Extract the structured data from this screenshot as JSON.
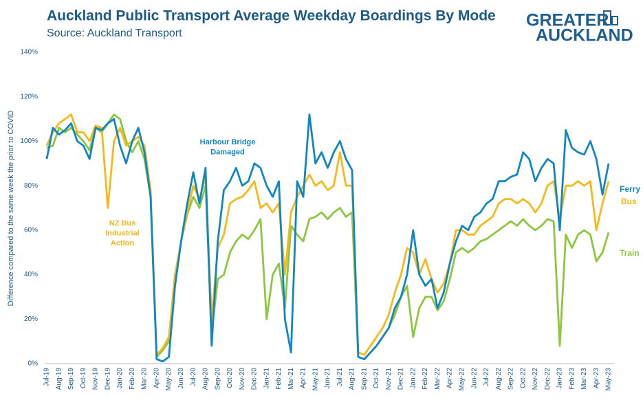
{
  "chart_data": {
    "type": "line",
    "title": "Auckland Public Transport Average Weekday Boardings By Mode",
    "subtitle": "Source: Auckland Transport",
    "logo": [
      "GREATER",
      "AUCKLAND"
    ],
    "y_label": "Difference compared to the same week the prior to COVID",
    "categories": [
      "Jul-19",
      null,
      "Aug-19",
      null,
      "Sep-19",
      null,
      "Oct-19",
      null,
      "Nov-19",
      null,
      "Dec-19",
      null,
      "Jan-20",
      null,
      "Feb-20",
      null,
      "Mar-20",
      null,
      "Apr-20",
      null,
      "May-20",
      null,
      "Jun-20",
      null,
      "Jul-20",
      null,
      "Aug-20",
      null,
      "Sep-20",
      null,
      "Oct-20",
      null,
      "Nov-20",
      null,
      "Dec-20",
      null,
      "Jan-21",
      null,
      "Feb-21",
      null,
      "Mar-21",
      null,
      "Apr-21",
      null,
      "May-21",
      null,
      "Jun-21",
      null,
      "Jul-21",
      null,
      "Aug-21",
      null,
      "Sep-21",
      null,
      "Oct-21",
      null,
      "Nov-21",
      null,
      "Dec-21",
      null,
      "Jan-22",
      null,
      "Feb-22",
      null,
      "Mar-22",
      null,
      "Apr-22",
      null,
      "May-22",
      null,
      "Jun-22",
      null,
      "Jul-22",
      null,
      "Aug-22",
      null,
      "Sep-22",
      null,
      "Oct-22",
      null,
      "Nov-22",
      null,
      "Dec-22",
      null,
      "Jan-23",
      null,
      "Feb-23",
      null,
      "Mar-23",
      null,
      "Apr-23",
      null,
      "May-23"
    ],
    "series": [
      {
        "name": "Ferry",
        "color": "#1187c2",
        "values": [
          92,
          106,
          103,
          105,
          108,
          100,
          98,
          92,
          106,
          105,
          108,
          110,
          98,
          90,
          100,
          106,
          95,
          75,
          2,
          1,
          3,
          35,
          55,
          72,
          86,
          72,
          88,
          8,
          55,
          78,
          82,
          88,
          80,
          82,
          90,
          88,
          80,
          75,
          82,
          20,
          5,
          82,
          75,
          112,
          90,
          95,
          88,
          95,
          100,
          92,
          87,
          3,
          2,
          5,
          8,
          12,
          16,
          25,
          30,
          40,
          60,
          40,
          35,
          38,
          25,
          32,
          45,
          55,
          62,
          60,
          66,
          68,
          72,
          74,
          82,
          82,
          84,
          85,
          95,
          92,
          82,
          88,
          92,
          90,
          60,
          105,
          97,
          95,
          94,
          100,
          92,
          76,
          90
        ]
      },
      {
        "name": "Bus",
        "color": "#f6b81a",
        "values": [
          98,
          104,
          108,
          110,
          112,
          104,
          104,
          100,
          107,
          106,
          70,
          100,
          106,
          98,
          100,
          102,
          98,
          78,
          4,
          7,
          12,
          40,
          55,
          68,
          80,
          74,
          84,
          20,
          52,
          58,
          72,
          74,
          75,
          78,
          82,
          70,
          72,
          68,
          72,
          40,
          68,
          75,
          80,
          85,
          80,
          82,
          78,
          80,
          95,
          80,
          80,
          5,
          4,
          8,
          12,
          16,
          22,
          32,
          40,
          52,
          50,
          40,
          47,
          38,
          32,
          36,
          45,
          60,
          60,
          58,
          58,
          62,
          64,
          66,
          72,
          74,
          74,
          72,
          74,
          72,
          68,
          72,
          80,
          82,
          65,
          80,
          80,
          82,
          80,
          82,
          60,
          72,
          82
        ]
      },
      {
        "name": "Train",
        "color": "#8dc63f",
        "values": [
          97,
          98,
          106,
          104,
          106,
          103,
          100,
          96,
          106,
          104,
          108,
          112,
          110,
          100,
          95,
          100,
          92,
          75,
          3,
          6,
          10,
          38,
          55,
          67,
          75,
          70,
          80,
          14,
          38,
          40,
          50,
          55,
          58,
          56,
          60,
          65,
          20,
          40,
          45,
          25,
          62,
          58,
          55,
          65,
          66,
          68,
          65,
          68,
          70,
          66,
          68,
          3,
          2,
          5,
          8,
          12,
          16,
          22,
          30,
          35,
          12,
          25,
          30,
          30,
          24,
          28,
          38,
          50,
          52,
          50,
          52,
          55,
          56,
          58,
          60,
          62,
          64,
          62,
          65,
          62,
          60,
          62,
          65,
          64,
          8,
          58,
          52,
          58,
          60,
          58,
          46,
          50,
          59
        ]
      }
    ],
    "annotations": [
      {
        "text": [
          "Harbour Bridge",
          "Damaged"
        ],
        "color": "#1187c2"
      },
      {
        "text": [
          "NZ Bus",
          "Industrial",
          "Action"
        ],
        "color": "#f6b81a"
      }
    ],
    "ylim": [
      0,
      140
    ],
    "yticks": [
      {
        "value": 0,
        "label": "0%"
      },
      {
        "value": 20,
        "label": "20%"
      },
      {
        "value": 40,
        "label": "40%"
      },
      {
        "value": 60,
        "label": "60%"
      },
      {
        "value": 80,
        "label": "80%"
      },
      {
        "value": 100,
        "label": "100%"
      },
      {
        "value": 120,
        "label": "120%"
      },
      {
        "value": 140,
        "label": "140%"
      }
    ],
    "grid": false
  }
}
